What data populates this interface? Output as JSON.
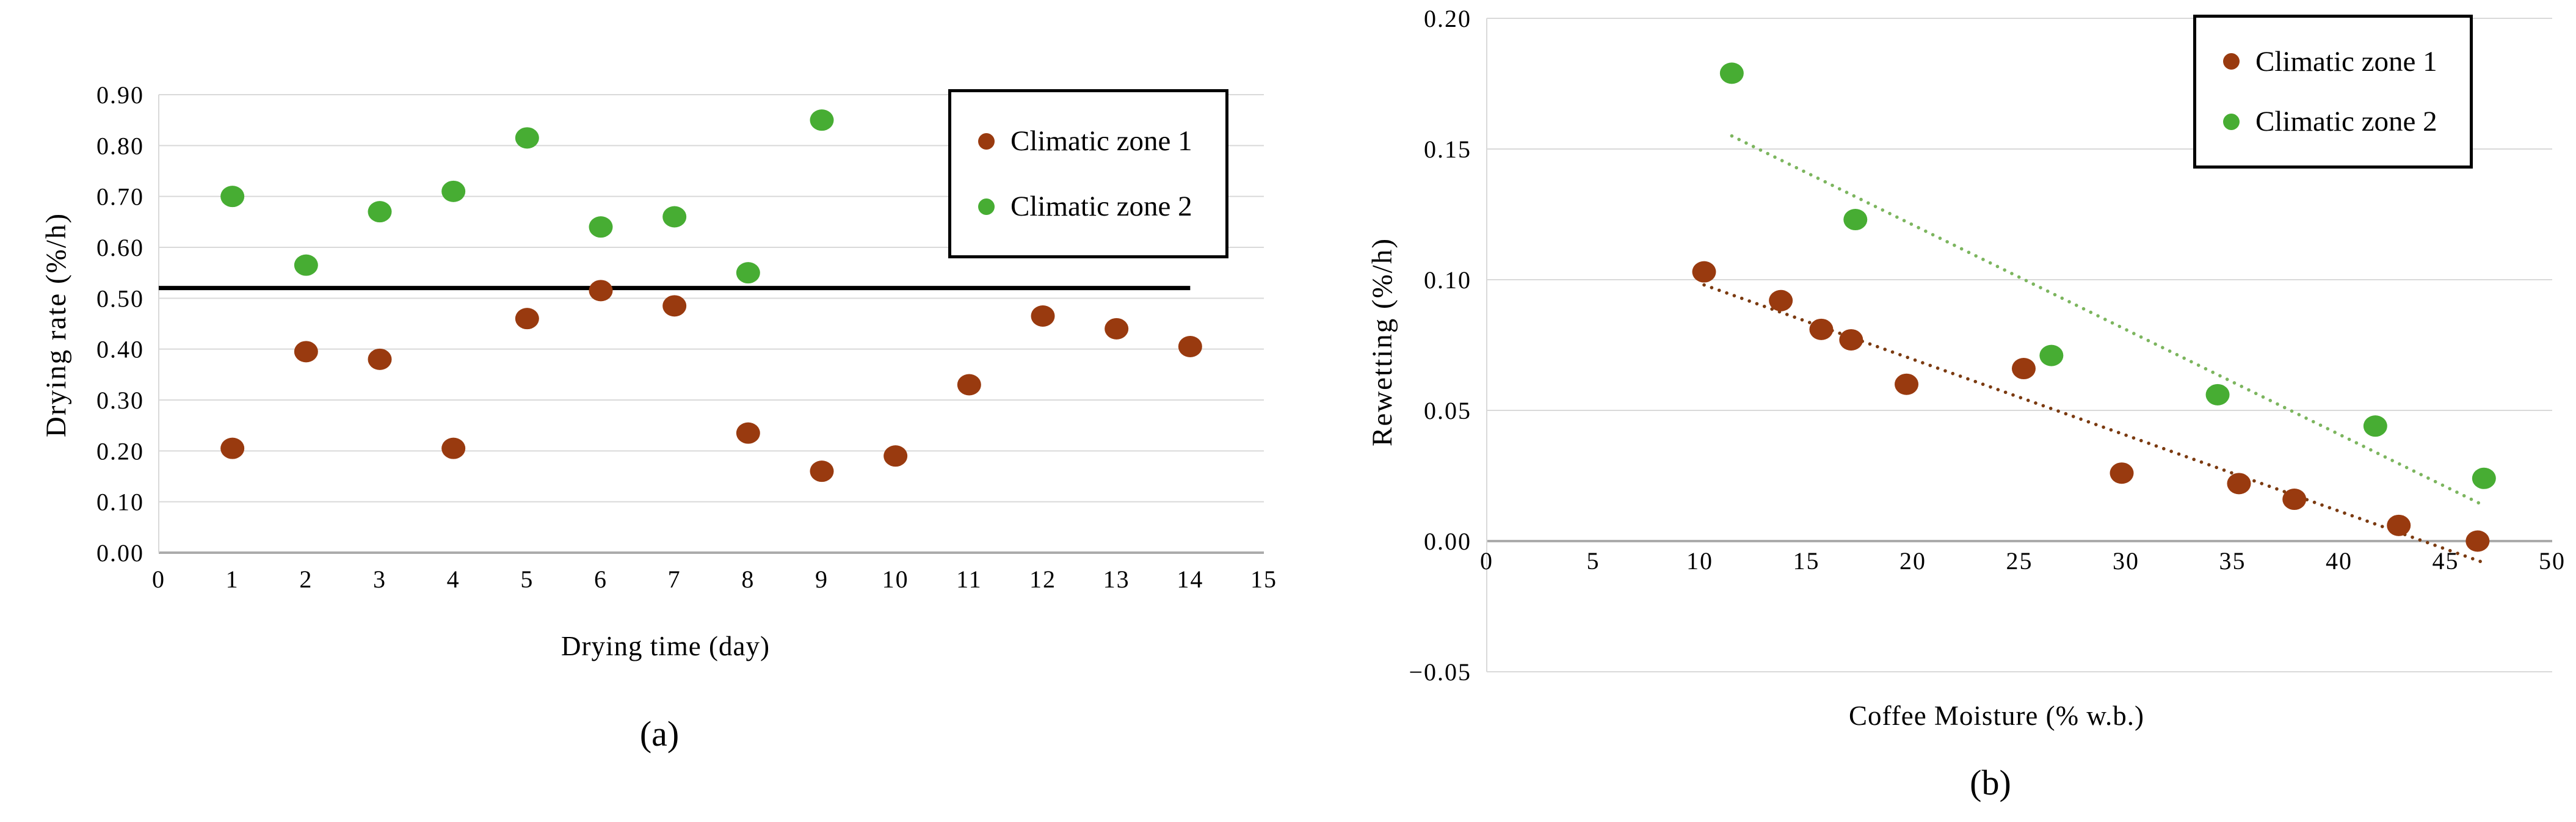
{
  "figure": {
    "panel_a_caption": "(a)",
    "panel_b_caption": "(b)"
  },
  "colors": {
    "zone1": "#993a0f",
    "zone2": "#47ad33",
    "zone1_trend": "#7b3a10",
    "zone2_trend": "#7cb55e",
    "gridline": "#d9d9d9",
    "axis_major": "#ababab",
    "reference_line": "#000000"
  },
  "chart_data": [
    {
      "id": "a",
      "type": "scatter",
      "title": "",
      "xlabel": "Drying time (day)",
      "ylabel": "Drying rate (%/h)",
      "caption": "(a)",
      "xlim": [
        0,
        15
      ],
      "ylim": [
        0.0,
        0.9
      ],
      "grid": "horizontal",
      "x_ticks": [
        0,
        1,
        2,
        3,
        4,
        5,
        6,
        7,
        8,
        9,
        10,
        11,
        12,
        13,
        14,
        15
      ],
      "x_tick_labels": [
        "0",
        "1",
        "2",
        "3",
        "4",
        "5",
        "6",
        "7",
        "8",
        "9",
        "10",
        "11",
        "12",
        "13",
        "14",
        "15"
      ],
      "y_ticks": [
        0.0,
        0.1,
        0.2,
        0.3,
        0.4,
        0.5,
        0.6,
        0.7,
        0.8,
        0.9
      ],
      "y_tick_labels": [
        "0.00",
        "0.10",
        "0.20",
        "0.30",
        "0.40",
        "0.50",
        "0.60",
        "0.70",
        "0.80",
        "0.90"
      ],
      "legend": {
        "position": "top-right",
        "entries": [
          "Climatic zone 1",
          "Climatic zone 2"
        ]
      },
      "series": [
        {
          "name": "Climatic zone 1",
          "color": "#993a0f",
          "points": [
            [
              1,
              0.205
            ],
            [
              2,
              0.395
            ],
            [
              3,
              0.38
            ],
            [
              4,
              0.205
            ],
            [
              5,
              0.46
            ],
            [
              6,
              0.515
            ],
            [
              7,
              0.485
            ],
            [
              8,
              0.235
            ],
            [
              9,
              0.16
            ],
            [
              10,
              0.19
            ],
            [
              11,
              0.33
            ],
            [
              12,
              0.465
            ],
            [
              13,
              0.44
            ],
            [
              14,
              0.405
            ]
          ]
        },
        {
          "name": "Climatic zone 2",
          "color": "#47ad33",
          "points": [
            [
              1,
              0.7
            ],
            [
              2,
              0.565
            ],
            [
              3,
              0.67
            ],
            [
              4,
              0.71
            ],
            [
              5,
              0.815
            ],
            [
              6,
              0.64
            ],
            [
              7,
              0.66
            ],
            [
              8,
              0.55
            ],
            [
              9,
              0.85
            ]
          ]
        }
      ],
      "reference_line": {
        "y": 0.52,
        "x_start": 0,
        "x_end": 14,
        "color": "#000000"
      }
    },
    {
      "id": "b",
      "type": "scatter",
      "title": "",
      "xlabel": "Coffee Moisture (% w.b.)",
      "ylabel": "Rewetting (%/h)",
      "caption": "(b)",
      "xlim": [
        0,
        50
      ],
      "ylim": [
        -0.05,
        0.2
      ],
      "grid": "horizontal",
      "x_ticks": [
        0,
        5,
        10,
        15,
        20,
        25,
        30,
        35,
        40,
        45,
        50
      ],
      "x_tick_labels": [
        "0",
        "5",
        "10",
        "15",
        "20",
        "25",
        "30",
        "35",
        "40",
        "45",
        "50"
      ],
      "y_ticks": [
        -0.05,
        0.0,
        0.05,
        0.1,
        0.15,
        0.2
      ],
      "y_tick_labels": [
        "−0.05",
        "0.00",
        "0.05",
        "0.10",
        "0.15",
        "0.20"
      ],
      "legend": {
        "position": "top-right",
        "entries": [
          "Climatic zone 1",
          "Climatic zone 2"
        ]
      },
      "series": [
        {
          "name": "Climatic zone 1",
          "color": "#993a0f",
          "points": [
            [
              10.2,
              0.103
            ],
            [
              13.8,
              0.092
            ],
            [
              15.7,
              0.081
            ],
            [
              17.1,
              0.077
            ],
            [
              19.7,
              0.06
            ],
            [
              25.2,
              0.066
            ],
            [
              29.8,
              0.026
            ],
            [
              35.3,
              0.022
            ],
            [
              37.9,
              0.016
            ],
            [
              42.8,
              0.006
            ],
            [
              46.5,
              0.0
            ]
          ]
        },
        {
          "name": "Climatic zone 2",
          "color": "#47ad33",
          "points": [
            [
              11.5,
              0.179
            ],
            [
              17.3,
              0.123
            ],
            [
              26.5,
              0.071
            ],
            [
              34.3,
              0.056
            ],
            [
              41.7,
              0.044
            ],
            [
              46.8,
              0.024
            ]
          ]
        }
      ],
      "trendlines": [
        {
          "series": "Climatic zone 1",
          "style": "dotted",
          "color": "#7b3a10",
          "from": [
            10.2,
            0.098
          ],
          "to": [
            46.7,
            -0.008
          ]
        },
        {
          "series": "Climatic zone 2",
          "style": "dotted",
          "color": "#7cb55e",
          "from": [
            11.5,
            0.155
          ],
          "to": [
            46.7,
            0.014
          ]
        }
      ]
    }
  ]
}
